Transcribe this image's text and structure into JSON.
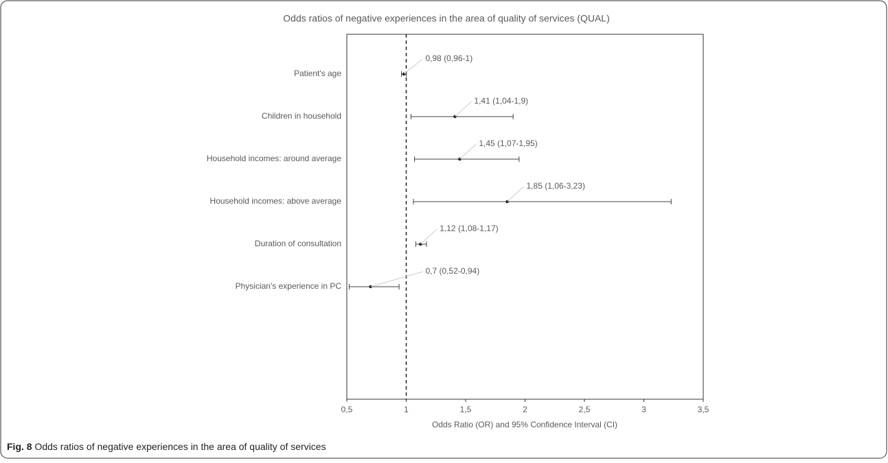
{
  "chart_data": {
    "type": "forest",
    "title": "Odds ratios of negative experiences in the area of quality of services (QUAL)",
    "x_label": "Odds Ratio (OR) and 95% Confidence Interval (CI)",
    "categories": [
      "Patient's age",
      "Children in household",
      "Household incomes: around average",
      "Household incomes: above average",
      "Duration of consultation",
      "Physician's experience in PC"
    ],
    "values": [
      0.98,
      1.41,
      1.45,
      1.85,
      1.12,
      0.7
    ],
    "lower": [
      0.96,
      1.04,
      1.07,
      1.06,
      1.08,
      0.52
    ],
    "upper": [
      1,
      1.9,
      1.95,
      3.23,
      1.17,
      0.94
    ],
    "value_labels": [
      "0,98 (0,96-1)",
      "1,41 (1,04-1,9)",
      "1,45 (1,07-1,95)",
      "1,85 (1,06-3,23)",
      "1,12 (1,08-1,17)",
      "0,7 (0,52-0,94)"
    ],
    "reference_line": 1,
    "color": "#404040",
    "xlim": [
      0.5,
      3.5
    ],
    "xticks": [
      {
        "value": 0.5,
        "label": "0,5"
      },
      1,
      {
        "value": 1.5,
        "label": "1,5"
      },
      2,
      {
        "value": 2.5,
        "label": "2,5"
      },
      3,
      {
        "value": 3.5,
        "label": "3,5"
      }
    ],
    "caption_label": "Fig. 8",
    "caption": "Odds ratios of negative experiences in the area of quality of services"
  }
}
